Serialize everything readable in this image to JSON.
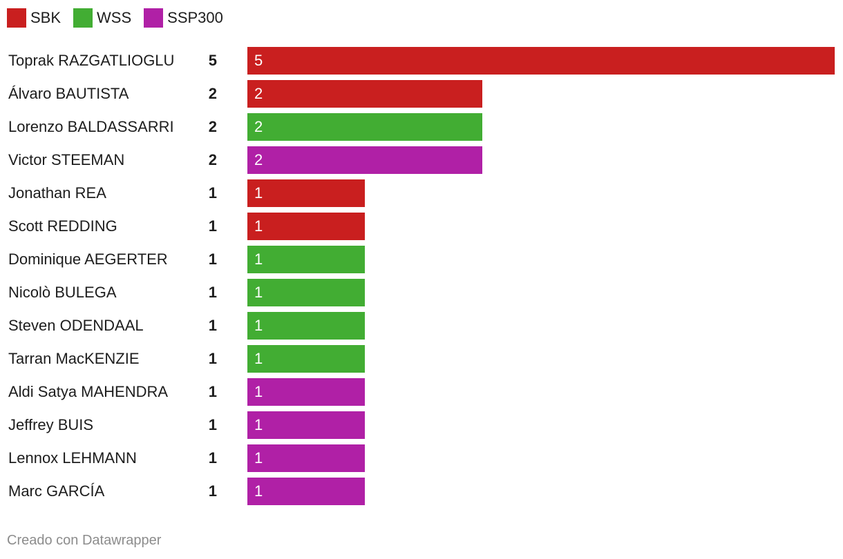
{
  "colors": {
    "SBK": "#c91f1f",
    "WSS": "#42ad33",
    "SSP300": "#b020a6"
  },
  "legend": [
    {
      "key": "SBK",
      "label": "SBK"
    },
    {
      "key": "WSS",
      "label": "WSS"
    },
    {
      "key": "SSP300",
      "label": "SSP300"
    }
  ],
  "chart_data": {
    "type": "bar",
    "orientation": "horizontal",
    "title": "",
    "xlim": [
      0,
      5
    ],
    "categories": [
      "Toprak RAZGATLIOGLU",
      "Álvaro BAUTISTA",
      "Lorenzo BALDASSARRI",
      "Victor STEEMAN",
      "Jonathan REA",
      "Scott REDDING",
      "Dominique AEGERTER",
      "Nicolò BULEGA",
      "Steven ODENDAAL",
      "Tarran MacKENZIE",
      "Aldi Satya MAHENDRA",
      "Jeffrey BUIS",
      "Lennox LEHMANN",
      "Marc GARCÍA"
    ],
    "rows": [
      {
        "name": "Toprak RAZGATLIOGLU",
        "total": "5",
        "series": "SBK",
        "value": 5
      },
      {
        "name": "Álvaro BAUTISTA",
        "total": "2",
        "series": "SBK",
        "value": 2
      },
      {
        "name": "Lorenzo BALDASSARRI",
        "total": "2",
        "series": "WSS",
        "value": 2
      },
      {
        "name": "Victor STEEMAN",
        "total": "2",
        "series": "SSP300",
        "value": 2
      },
      {
        "name": "Jonathan REA",
        "total": "1",
        "series": "SBK",
        "value": 1
      },
      {
        "name": "Scott REDDING",
        "total": "1",
        "series": "SBK",
        "value": 1
      },
      {
        "name": "Dominique AEGERTER",
        "total": "1",
        "series": "WSS",
        "value": 1
      },
      {
        "name": "Nicolò BULEGA",
        "total": "1",
        "series": "WSS",
        "value": 1
      },
      {
        "name": "Steven ODENDAAL",
        "total": "1",
        "series": "WSS",
        "value": 1
      },
      {
        "name": "Tarran MacKENZIE",
        "total": "1",
        "series": "WSS",
        "value": 1
      },
      {
        "name": "Aldi Satya MAHENDRA",
        "total": "1",
        "series": "SSP300",
        "value": 1
      },
      {
        "name": "Jeffrey BUIS",
        "total": "1",
        "series": "SSP300",
        "value": 1
      },
      {
        "name": "Lennox LEHMANN",
        "total": "1",
        "series": "SSP300",
        "value": 1
      },
      {
        "name": "Marc GARCÍA",
        "total": "1",
        "series": "SSP300",
        "value": 1
      }
    ]
  },
  "footer": {
    "text": "Creado con Datawrapper"
  }
}
